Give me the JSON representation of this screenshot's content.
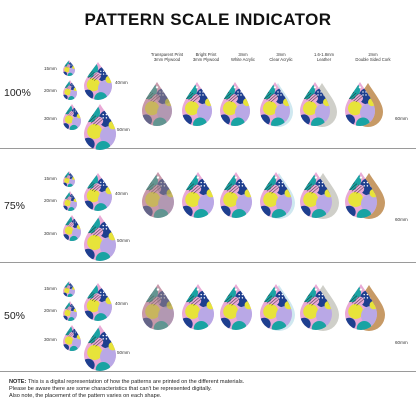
{
  "title": "PATTERN SCALE INDICATOR",
  "columns": [
    {
      "line1": "Transparent Print",
      "line2": "3mm Plywood"
    },
    {
      "line1": "Bright Print",
      "line2": "3mm Plywood"
    },
    {
      "line1": "3mm",
      "line2": "White Acrylic"
    },
    {
      "line1": "3mm",
      "line2": "Clear Acrylic"
    },
    {
      "line1": "1.6-1.8mm",
      "line2": "Leather"
    },
    {
      "line1": "2mm",
      "line2": "Double Sided Cork"
    }
  ],
  "rows": [
    {
      "scale": "100%",
      "sizes": [
        "15mm",
        "20mm",
        "30mm",
        "40mm",
        "50mm"
      ],
      "side_size": "60mm"
    },
    {
      "scale": "75%",
      "sizes": [
        "15mm",
        "20mm",
        "30mm",
        "40mm",
        "50mm"
      ],
      "side_size": "60mm"
    },
    {
      "scale": "50%",
      "sizes": [
        "15mm",
        "20mm",
        "30mm",
        "40mm",
        "50mm"
      ],
      "side_size": "60mm"
    }
  ],
  "footer": {
    "note_label": "NOTE:",
    "line1": "This is a digital representation of how the patterns are printed on the different materials.",
    "line2": "Please be aware there are some characteristics that can't be represented digitally.",
    "line3": "Also note, the placement of the pattern varies on each shape."
  },
  "colors": {
    "pink": "#e9a9d6",
    "teal": "#19a3a3",
    "navy": "#1e3f8f",
    "yellow": "#e7e33a",
    "lilac": "#b9a8e6",
    "cork": "#c79a66",
    "leather": "#cfcfc9",
    "acrylic_edge": "#cfe8f0"
  }
}
